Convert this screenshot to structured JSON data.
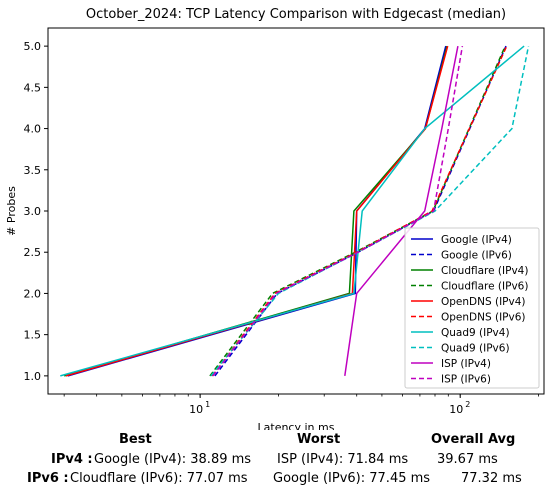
{
  "chart_data": {
    "type": "line",
    "title": "October_2024: TCP Latency Comparison with Edgecast (median)",
    "xlabel": "Latency in ms",
    "ylabel": "# Probes",
    "xscale": "log",
    "xlim": [
      2.6,
      210
    ],
    "ylim": [
      0.78,
      5.22
    ],
    "xticks": [
      {
        "value": 10,
        "base": "10",
        "exp": "1"
      },
      {
        "value": 100,
        "base": "10",
        "exp": "2"
      }
    ],
    "yticks": [
      "1.0",
      "1.5",
      "2.0",
      "2.5",
      "3.0",
      "3.5",
      "4.0",
      "4.5",
      "5.0"
    ],
    "grid": false,
    "legend_position": "lower-right",
    "series": [
      {
        "name": "Google (IPv4)",
        "color": "#0000cc",
        "dash": "solid",
        "x": [
          3.1,
          39.5,
          40.0,
          73.0,
          88.0
        ],
        "y": [
          1,
          2,
          3,
          4,
          5
        ]
      },
      {
        "name": "Google (IPv6)",
        "color": "#0000cc",
        "dash": "dashed",
        "x": [
          11.4,
          19.8,
          40.5,
          79.0,
          150.0
        ],
        "y": [
          1,
          2,
          2.5,
          3,
          5
        ]
      },
      {
        "name": "Cloudflare (IPv4)",
        "color": "#008000",
        "dash": "solid",
        "x": [
          3.0,
          37.5,
          39.0,
          73.5,
          89.0
        ],
        "y": [
          1,
          2,
          3,
          4,
          5
        ]
      },
      {
        "name": "Cloudflare (IPv6)",
        "color": "#008000",
        "dash": "dashed",
        "x": [
          10.9,
          19.0,
          39.5,
          78.5,
          149.0
        ],
        "y": [
          1,
          2,
          2.5,
          3,
          5
        ]
      },
      {
        "name": "OpenDNS (IPv4)",
        "color": "#ff0000",
        "dash": "solid",
        "x": [
          3.05,
          38.5,
          40.0,
          73.5,
          89.5
        ],
        "y": [
          1,
          2,
          3,
          4,
          5
        ]
      },
      {
        "name": "OpenDNS (IPv6)",
        "color": "#ff0000",
        "dash": "dashed",
        "x": [
          11.1,
          19.4,
          40.0,
          78.0,
          151.0
        ],
        "y": [
          1,
          2,
          2.5,
          3,
          5
        ]
      },
      {
        "name": "Quad9 (IPv4)",
        "color": "#00bfbf",
        "dash": "solid",
        "x": [
          2.9,
          39.0,
          42.0,
          73.0,
          176.0
        ],
        "y": [
          1,
          2,
          3,
          4,
          5
        ]
      },
      {
        "name": "Quad9 (IPv6)",
        "color": "#00bfbf",
        "dash": "dashed",
        "x": [
          11.0,
          20.0,
          40.5,
          80.0,
          158.0,
          183.0
        ],
        "y": [
          1,
          2,
          2.5,
          3,
          4,
          5
        ]
      },
      {
        "name": "ISP (IPv4)",
        "color": "#bf00bf",
        "dash": "solid",
        "x": [
          36.0,
          40.0,
          73.0,
          85.0,
          98.0
        ],
        "y": [
          1,
          2,
          3,
          4,
          5
        ]
      },
      {
        "name": "ISP (IPv6)",
        "color": "#bf00bf",
        "dash": "dashed",
        "x": [
          11.2,
          19.6,
          40.5,
          79.0,
          90.0,
          102.0
        ],
        "y": [
          1,
          2,
          2.5,
          3,
          4,
          5
        ]
      }
    ]
  },
  "summary": {
    "headers": {
      "best": "Best",
      "worst": "Worst",
      "avg": "Overall Avg"
    },
    "rows": [
      {
        "label": "IPv4 :",
        "best": "Google (IPv4): 38.89 ms",
        "worst": "ISP (IPv4): 71.84 ms",
        "avg": "39.67 ms"
      },
      {
        "label": "IPv6 :",
        "best": "Cloudflare (IPv6): 77.07 ms",
        "worst": "Google (IPv6): 77.45 ms",
        "avg": "77.32 ms"
      }
    ]
  }
}
